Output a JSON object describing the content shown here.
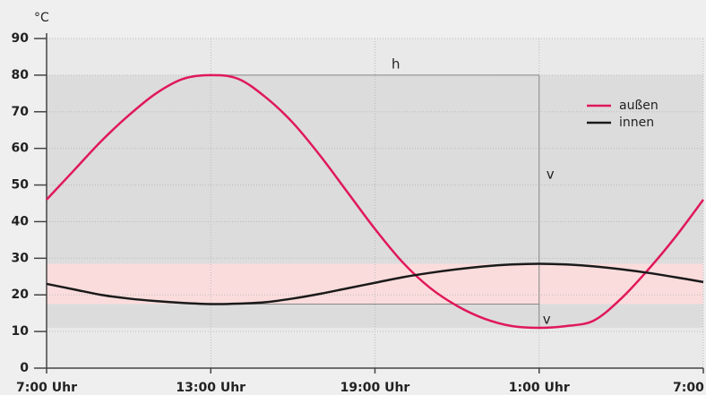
{
  "chart_data": {
    "type": "line",
    "y_unit": "°C",
    "categories": [
      "7:00 Uhr",
      null,
      null,
      null,
      null,
      null,
      "13:00 Uhr",
      null,
      null,
      null,
      null,
      null,
      "19:00 Uhr",
      null,
      null,
      null,
      null,
      null,
      "1:00 Uhr",
      null,
      null,
      null,
      null,
      null,
      "7:00 Uhr"
    ],
    "series": [
      {
        "name": "außen",
        "color": "#e0185a",
        "values": [
          46,
          54,
          62,
          69,
          75,
          79,
          80,
          79,
          74,
          67,
          58,
          48,
          38,
          29,
          22,
          17,
          13.5,
          11.5,
          11,
          11.5,
          13,
          19,
          27,
          36,
          46
        ]
      },
      {
        "name": "innen",
        "color": "#1a1a1a",
        "values": [
          23,
          21.5,
          20,
          19,
          18.3,
          17.8,
          17.5,
          17.6,
          18,
          19,
          20.3,
          21.8,
          23.3,
          24.8,
          26,
          27,
          27.8,
          28.3,
          28.5,
          28.3,
          27.8,
          27,
          26,
          24.8,
          23.5
        ]
      }
    ],
    "bands": [
      {
        "from": 11,
        "to": 80,
        "color": "#dcdcdc"
      },
      {
        "from": 17.5,
        "to": 28.5,
        "color": "#fbdcdc"
      }
    ],
    "annotations": [
      {
        "text": "h"
      },
      {
        "text": "v"
      },
      {
        "text": "v"
      }
    ],
    "ylim": [
      0,
      90
    ],
    "yticks": [
      0,
      10,
      20,
      30,
      40,
      50,
      60,
      70,
      80,
      90
    ],
    "grid": true,
    "legend": "upper right"
  }
}
